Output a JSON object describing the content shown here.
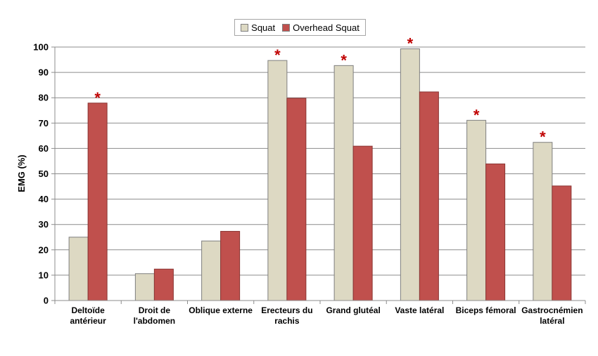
{
  "chart_data": {
    "type": "bar",
    "title": "",
    "xlabel": "",
    "ylabel": "EMG (%)",
    "ylim": [
      0,
      100
    ],
    "yticks": [
      0,
      10,
      20,
      30,
      40,
      50,
      60,
      70,
      80,
      90,
      100
    ],
    "grid": true,
    "legend_position": "top-center",
    "categories": [
      [
        "Deltoïde",
        "antérieur"
      ],
      [
        "Droit de",
        "l'abdomen"
      ],
      [
        "Oblique externe"
      ],
      [
        "Erecteurs du",
        "rachis"
      ],
      [
        "Grand glutéal"
      ],
      [
        "Vaste latéral"
      ],
      [
        "Biceps fémoral"
      ],
      [
        "Gastrocnémien",
        "latéral"
      ]
    ],
    "series": [
      {
        "name": "Squat",
        "color": "#ddd9c3",
        "values": [
          25,
          10.6,
          23.5,
          94.7,
          92.7,
          99.3,
          71.1,
          62.4
        ]
      },
      {
        "name": "Overhead Squat",
        "color": "#c0504d",
        "values": [
          77.9,
          12.4,
          27.3,
          79.8,
          60.9,
          82.3,
          53.9,
          45.2
        ]
      }
    ],
    "annotations": [
      {
        "symbol": "*",
        "category_index": 0,
        "color": "#c00000"
      },
      {
        "symbol": "*",
        "category_index": 3,
        "color": "#c00000"
      },
      {
        "symbol": "*",
        "category_index": 4,
        "color": "#c00000"
      },
      {
        "symbol": "*",
        "category_index": 5,
        "color": "#c00000"
      },
      {
        "symbol": "*",
        "category_index": 6,
        "color": "#c00000"
      },
      {
        "symbol": "*",
        "category_index": 7,
        "color": "#c00000"
      }
    ]
  }
}
